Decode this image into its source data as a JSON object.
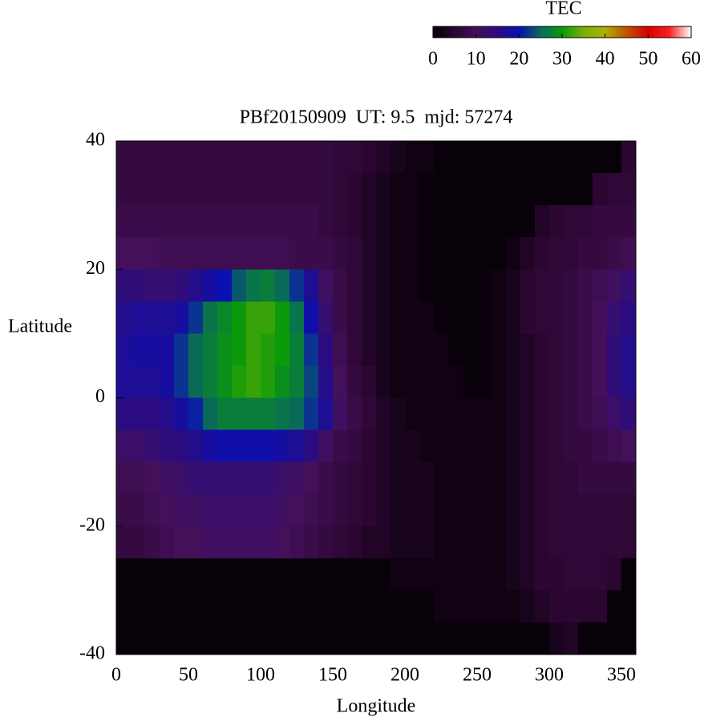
{
  "chart_data": {
    "type": "heatmap",
    "title": "PBf20150909  UT: 9.5  mjd: 57274",
    "x_label": "Longitude",
    "y_label": "Latitude",
    "x": [
      5,
      15,
      25,
      35,
      45,
      55,
      65,
      75,
      85,
      95,
      105,
      115,
      125,
      135,
      145,
      155,
      165,
      175,
      185,
      195,
      205,
      215,
      225,
      235,
      245,
      255,
      265,
      275,
      285,
      295,
      305,
      315,
      325,
      335,
      345,
      355
    ],
    "y": [
      37.5,
      32.5,
      27.5,
      22.5,
      17.5,
      12.5,
      7.5,
      2.5,
      -2.5,
      -7.5,
      -12.5,
      -17.5,
      -22.5,
      -27.5,
      -32.5,
      -37.5
    ],
    "values": [
      [
        7,
        7,
        7,
        7,
        7,
        7,
        7,
        7,
        7,
        7,
        7,
        7,
        7,
        7,
        7,
        6,
        6,
        5,
        4,
        3,
        2,
        2,
        1,
        1,
        1,
        1,
        1,
        1,
        1,
        1,
        1,
        1,
        1,
        1,
        1,
        5
      ],
      [
        7,
        7,
        7,
        7,
        7,
        7,
        7,
        7,
        7,
        7,
        7,
        7,
        7,
        7,
        7,
        6,
        5,
        4,
        3,
        2,
        2,
        1,
        1,
        1,
        1,
        1,
        1,
        1,
        1,
        1,
        1,
        1,
        1,
        5,
        6,
        6
      ],
      [
        8,
        8,
        8,
        8,
        8,
        8,
        8,
        8,
        8,
        8,
        8,
        8,
        8,
        8,
        7,
        6,
        5,
        4,
        3,
        2,
        2,
        1,
        1,
        1,
        1,
        1,
        1,
        1,
        1,
        4,
        5,
        6,
        6,
        7,
        7,
        7
      ],
      [
        10,
        10,
        10,
        9,
        9,
        9,
        9,
        9,
        9,
        9,
        9,
        9,
        8,
        8,
        8,
        7,
        6,
        4,
        3,
        2,
        2,
        1,
        1,
        1,
        1,
        1,
        1,
        2,
        4,
        5,
        6,
        6,
        7,
        7,
        8,
        9
      ],
      [
        14,
        14,
        13,
        13,
        14,
        16,
        18,
        20,
        24,
        26,
        27,
        25,
        22,
        17,
        11,
        8,
        6,
        4,
        3,
        2,
        2,
        1,
        1,
        1,
        1,
        1,
        2,
        3,
        5,
        6,
        6,
        7,
        8,
        9,
        11,
        13
      ],
      [
        16,
        17,
        17,
        17,
        18,
        22,
        26,
        28,
        30,
        32,
        32,
        30,
        26,
        19,
        13,
        8,
        6,
        4,
        3,
        2,
        2,
        2,
        1,
        1,
        1,
        1,
        2,
        3,
        5,
        6,
        6,
        7,
        8,
        10,
        13,
        15
      ],
      [
        17,
        18,
        18,
        18,
        22,
        25,
        27,
        29,
        30,
        32,
        31,
        30,
        27,
        22,
        15,
        9,
        6,
        4,
        3,
        2,
        2,
        2,
        2,
        1,
        1,
        1,
        2,
        3,
        4,
        5,
        6,
        7,
        8,
        10,
        14,
        16
      ],
      [
        17,
        17,
        17,
        18,
        22,
        25,
        27,
        29,
        31,
        32,
        31,
        29,
        27,
        23,
        16,
        10,
        7,
        5,
        3,
        2,
        2,
        2,
        2,
        2,
        1,
        1,
        2,
        3,
        4,
        5,
        6,
        7,
        8,
        10,
        14,
        16
      ],
      [
        15,
        15,
        15,
        16,
        18,
        21,
        25,
        27,
        27,
        27,
        27,
        26,
        25,
        22,
        17,
        11,
        8,
        6,
        4,
        3,
        2,
        2,
        2,
        2,
        2,
        2,
        2,
        3,
        4,
        5,
        6,
        7,
        8,
        9,
        12,
        14
      ],
      [
        12,
        12,
        13,
        14,
        15,
        16,
        18,
        19,
        19,
        19,
        19,
        18,
        17,
        15,
        11,
        8,
        7,
        5,
        4,
        3,
        3,
        2,
        2,
        2,
        2,
        2,
        2,
        3,
        4,
        5,
        6,
        7,
        7,
        8,
        9,
        10
      ],
      [
        9,
        9,
        10,
        11,
        12,
        13,
        13,
        13,
        13,
        13,
        13,
        12,
        11,
        10,
        8,
        7,
        6,
        5,
        4,
        3,
        3,
        3,
        2,
        2,
        2,
        2,
        2,
        3,
        4,
        5,
        6,
        6,
        7,
        7,
        7,
        7
      ],
      [
        8,
        8,
        9,
        10,
        11,
        11,
        12,
        12,
        12,
        12,
        12,
        11,
        10,
        9,
        8,
        7,
        6,
        5,
        4,
        3,
        3,
        3,
        2,
        2,
        2,
        2,
        2,
        3,
        4,
        5,
        6,
        6,
        6,
        6,
        6,
        6
      ],
      [
        7,
        7,
        8,
        9,
        10,
        10,
        11,
        11,
        11,
        11,
        11,
        10,
        9,
        8,
        7,
        6,
        5,
        4,
        4,
        3,
        3,
        3,
        2,
        2,
        2,
        2,
        2,
        3,
        4,
        5,
        6,
        6,
        6,
        6,
        6,
        6
      ],
      [
        1,
        1,
        1,
        1,
        1,
        1,
        1,
        1,
        1,
        1,
        1,
        1,
        1,
        1,
        1,
        1,
        1,
        1,
        1,
        2,
        2,
        2,
        2,
        2,
        2,
        2,
        2,
        3,
        4,
        5,
        5,
        6,
        6,
        6,
        5,
        1
      ],
      [
        1,
        1,
        1,
        1,
        1,
        1,
        1,
        1,
        1,
        1,
        1,
        1,
        1,
        1,
        1,
        1,
        1,
        1,
        1,
        1,
        1,
        1,
        2,
        2,
        2,
        2,
        2,
        2,
        3,
        4,
        5,
        5,
        5,
        5,
        1,
        1
      ],
      [
        1,
        1,
        1,
        1,
        1,
        1,
        1,
        1,
        1,
        1,
        1,
        1,
        1,
        1,
        1,
        1,
        1,
        1,
        1,
        1,
        1,
        1,
        1,
        1,
        1,
        1,
        1,
        1,
        1,
        1,
        3,
        4,
        1,
        1,
        1,
        1
      ]
    ],
    "xlim": [
      0,
      360
    ],
    "xticks": [
      0,
      50,
      100,
      150,
      200,
      250,
      300,
      350
    ],
    "ylim": [
      -40,
      40
    ],
    "yticks": [
      -40,
      -20,
      0,
      20,
      40
    ],
    "colorbar": {
      "label": "TEC",
      "lim": [
        0,
        60
      ],
      "ticks": [
        0,
        10,
        20,
        30,
        40,
        50,
        60
      ],
      "palette": [
        "#000000",
        "#2a0630",
        "#44105a",
        "#2a0c80",
        "#0a10b4",
        "#0a6a5a",
        "#0a9a0a",
        "#7ab008",
        "#b0b000",
        "#c05000",
        "#d80000",
        "#ff2020",
        "#ffffff"
      ]
    }
  }
}
